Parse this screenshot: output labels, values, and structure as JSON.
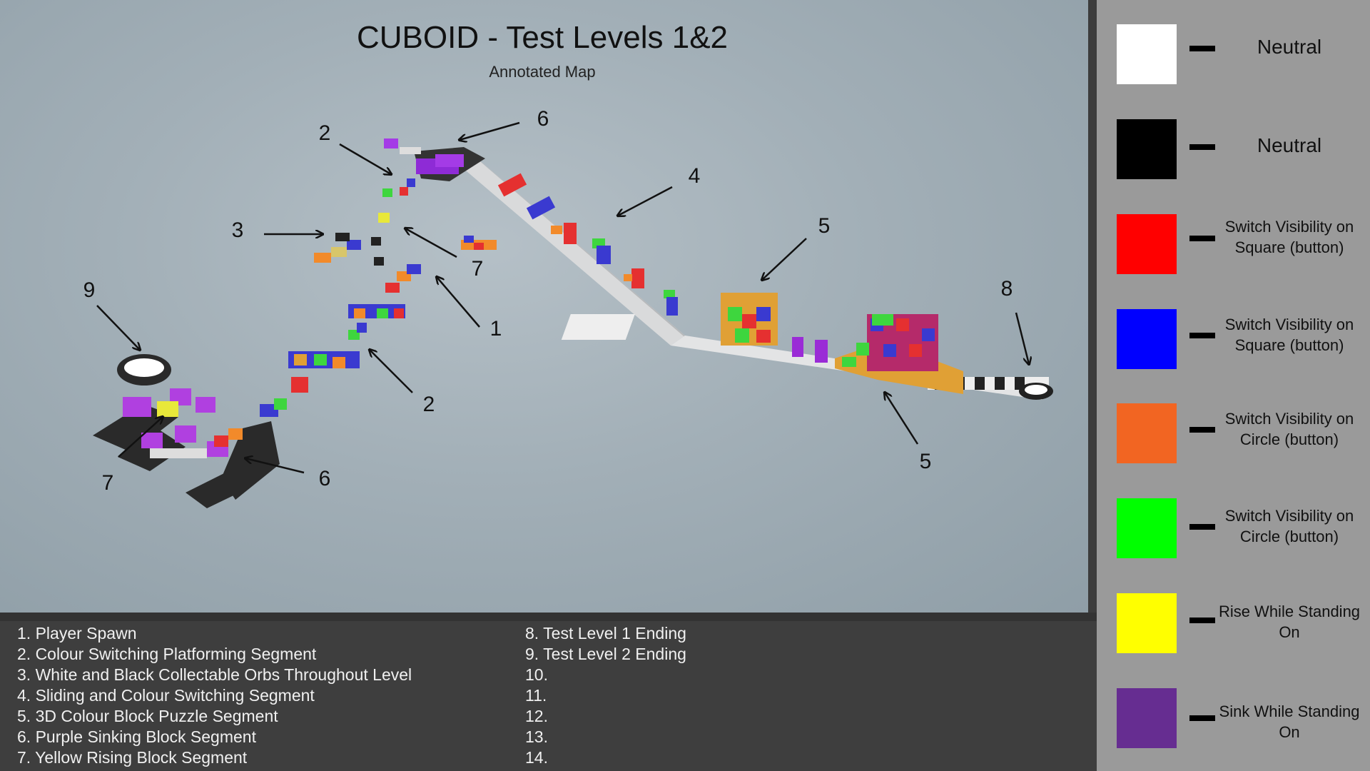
{
  "header": {
    "title": "CUBOID - Test Levels 1&2",
    "subtitle": "Annotated Map"
  },
  "map_labels": [
    "1",
    "2",
    "2",
    "3",
    "4",
    "5",
    "5",
    "6",
    "6",
    "7",
    "7",
    "8",
    "9"
  ],
  "legend": [
    {
      "color": "#ffffff",
      "label": "Neutral"
    },
    {
      "color": "#000000",
      "label": "Neutral"
    },
    {
      "color": "#ff0000",
      "label": "Switch Visibility on Square (button)"
    },
    {
      "color": "#0000ff",
      "label": "Switch Visibility on Square (button)"
    },
    {
      "color": "#f26522",
      "label": "Switch Visibility on Circle (button)"
    },
    {
      "color": "#00ff00",
      "label": "Switch Visibility on Circle (button)"
    },
    {
      "color": "#ffff00",
      "label": "Rise While Standing On"
    },
    {
      "color": "#662d91",
      "label": "Sink While Standing On"
    }
  ],
  "notes_left": [
    "1. Player Spawn",
    "2. Colour Switching Platforming Segment",
    "3. White and Black Collectable Orbs Throughout Level",
    "4. Sliding and Colour Switching Segment",
    "5. 3D Colour Block Puzzle Segment",
    "6. Purple Sinking Block Segment",
    "7. Yellow Rising Block Segment"
  ],
  "notes_right": [
    "8. Test Level 1 Ending",
    "9. Test Level 2 Ending",
    "10.",
    "11.",
    "12.",
    "13.",
    "14."
  ]
}
